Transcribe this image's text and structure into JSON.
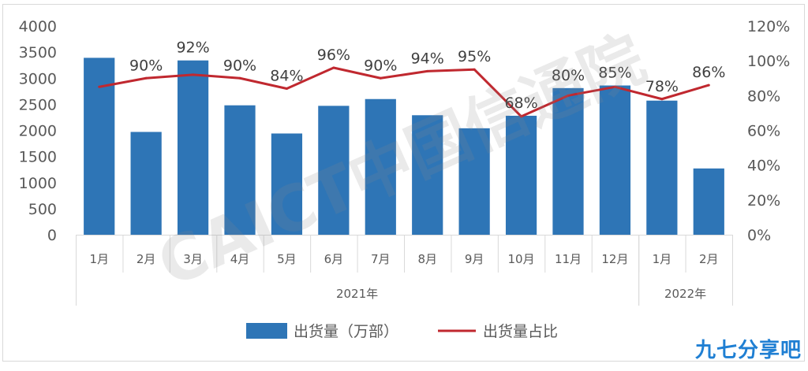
{
  "chart_data": {
    "type": "bar",
    "categories": [
      "1月",
      "2月",
      "3月",
      "4月",
      "5月",
      "6月",
      "7月",
      "8月",
      "9月",
      "10月",
      "11月",
      "12月",
      "1月",
      "2月"
    ],
    "groups": [
      {
        "label": "2021年",
        "start": 0,
        "end": 11
      },
      {
        "label": "2022年",
        "start": 12,
        "end": 13
      }
    ],
    "series": [
      {
        "name": "出货量（万部）",
        "type": "bar",
        "axis": "left",
        "color": "#2e75b6",
        "values": [
          3390,
          1970,
          3340,
          2480,
          1940,
          2470,
          2600,
          2290,
          2040,
          2280,
          2810,
          2860,
          2570,
          1270
        ]
      },
      {
        "name": "出货量占比",
        "type": "line",
        "axis": "right",
        "color": "#c0282f",
        "values": [
          85,
          90,
          92,
          90,
          84,
          96,
          90,
          94,
          95,
          68,
          80,
          85,
          78,
          86
        ],
        "labels": [
          "",
          "90%",
          "92%",
          "90%",
          "84%",
          "96%",
          "90%",
          "94%",
          "95%",
          "68%",
          "80%",
          "85%",
          "78%",
          "86%"
        ]
      }
    ],
    "y_left": {
      "min": 0,
      "max": 4000,
      "ticks": [
        "0",
        "500",
        "1000",
        "1500",
        "2000",
        "2500",
        "3000",
        "3500",
        "4000"
      ]
    },
    "y_right": {
      "min": 0,
      "max": 120,
      "ticks": [
        "0%",
        "20%",
        "40%",
        "60%",
        "80%",
        "100%",
        "120%"
      ]
    },
    "grid": false,
    "legend_position": "bottom",
    "title": "",
    "xlabel": "",
    "ylabel": ""
  },
  "watermark": "CAICT中国信通院",
  "brand": "九七分享吧"
}
